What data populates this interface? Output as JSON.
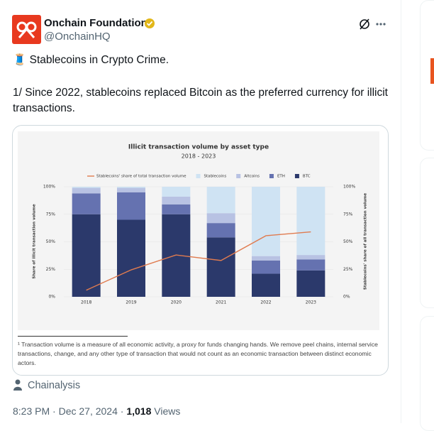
{
  "tweet": {
    "name": "Onchain Foundation",
    "handle": "@OnchainHQ",
    "headline": "🧵 Stablecoins in Crypto Crime.",
    "body": "1/ Since 2022, stablecoins replaced Bitcoin as the preferred currency for illicit transactions.",
    "source": "Chainalysis",
    "time": "8:23 PM · Dec 27, 2024",
    "separator": "·",
    "views_count": "1,018",
    "views_label": "Views"
  },
  "chart_data": {
    "type": "bar",
    "stacked": true,
    "title": "Illicit transaction volume by asset type",
    "subtitle": "2018 - 2023",
    "y_label": "Share of illicit transaction volume",
    "y2_label": "Stablecoins' share of all transaction volume",
    "categories": [
      "2018",
      "2019",
      "2020",
      "2021",
      "2022",
      "2023"
    ],
    "series": [
      {
        "name": "Stablecoins' share of total transaction volume",
        "type": "line",
        "axis": "y2",
        "color": "#e07b4f",
        "values": [
          6,
          24.5,
          38,
          33,
          55.5,
          59
        ]
      },
      {
        "name": "Stablecoins",
        "color": "#cfe3f3",
        "values": [
          1,
          1,
          9,
          24,
          63,
          62
        ]
      },
      {
        "name": "Altcoins",
        "color": "#b8c2e3",
        "values": [
          5,
          4,
          7,
          9,
          4,
          4
        ]
      },
      {
        "name": "ETH",
        "color": "#6572b0",
        "values": [
          19,
          25,
          9,
          13,
          12,
          10
        ]
      },
      {
        "name": "BTC",
        "color": "#2b396b",
        "values": [
          75,
          70,
          75,
          54,
          21,
          24
        ]
      }
    ],
    "ylim": [
      0,
      100
    ],
    "yticks": [
      {
        "value": 0,
        "label": "0%"
      },
      {
        "value": 25,
        "label": "25%"
      },
      {
        "value": 50,
        "label": "50%"
      },
      {
        "value": 75,
        "label": "75%"
      },
      {
        "value": 100,
        "label": "100%"
      }
    ],
    "y2lim": [
      0,
      100
    ],
    "y2ticks": [
      {
        "value": 0,
        "label": "0%"
      },
      {
        "value": 25,
        "label": "25%"
      },
      {
        "value": 50,
        "label": "50%"
      },
      {
        "value": 75,
        "label": "75%"
      },
      {
        "value": 100,
        "label": "100%"
      }
    ],
    "grid": true,
    "footnote": "¹ Transaction volume is a measure of all economic activity, a proxy for funds changing hands. We remove peel chains, internal service transactions, change, and any other type of transaction that would not count as an economic transaction between distinct economic actors."
  }
}
